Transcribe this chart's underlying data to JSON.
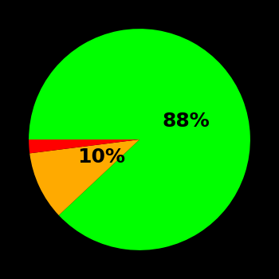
{
  "slices": [
    88,
    10,
    2
  ],
  "colors": [
    "#00ff00",
    "#ffaa00",
    "#ff0000"
  ],
  "background_color": "#000000",
  "startangle": 180,
  "counterclock": false,
  "figsize": [
    3.5,
    3.5
  ],
  "dpi": 100,
  "label_fontsize": 18,
  "label_fontweight": "bold",
  "label_color": "black",
  "green_label": "88%",
  "yellow_label": "10%",
  "green_label_r": 0.45,
  "yellow_label_r": 0.38
}
